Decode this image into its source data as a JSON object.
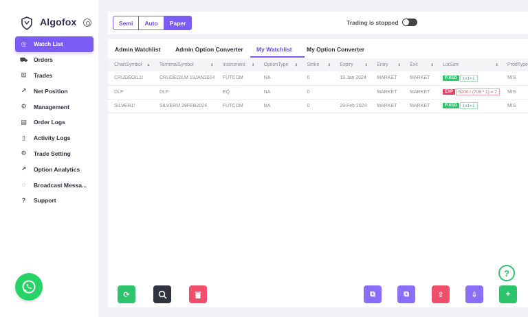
{
  "brand": {
    "name": "Algofox",
    "logo_icon": "shield-fox-logo",
    "settings_icon": "gear-icon"
  },
  "sidebar": {
    "items": [
      {
        "label": "Watch List",
        "icon": "eye-icon",
        "glyph": "◎",
        "active": true
      },
      {
        "label": "Orders",
        "icon": "cart-icon",
        "glyph": "⛟",
        "active": false
      },
      {
        "label": "Trades",
        "icon": "bag-icon",
        "glyph": "⊡",
        "active": false
      },
      {
        "label": "Net Position",
        "icon": "trend-icon",
        "glyph": "↗",
        "active": false
      },
      {
        "label": "Management",
        "icon": "cog-icon",
        "glyph": "⚙",
        "active": false
      },
      {
        "label": "Order Logs",
        "icon": "file-icon",
        "glyph": "▤",
        "active": false
      },
      {
        "label": "Activity Logs",
        "icon": "book-icon",
        "glyph": "▯",
        "active": false
      },
      {
        "label": "Trade Setting",
        "icon": "cog-icon",
        "glyph": "⚙",
        "active": false
      },
      {
        "label": "Option Analytics",
        "icon": "trend-icon",
        "glyph": "↗",
        "active": false
      },
      {
        "label": "Broadcast Messa...",
        "icon": "chat-icon",
        "glyph": "◌",
        "active": false
      },
      {
        "label": "Support",
        "icon": "help-icon",
        "glyph": "?",
        "active": false
      }
    ]
  },
  "topbar": {
    "modes": [
      {
        "label": "Semi",
        "active": false
      },
      {
        "label": "Auto",
        "active": false
      },
      {
        "label": "Paper",
        "active": true
      }
    ],
    "trading_status": "Trading is stopped"
  },
  "tabs": [
    "Admin Watchlist",
    "Admin Option Converter",
    "My Watchlist",
    "My Option Converter"
  ],
  "active_tab": "My Watchlist",
  "table": {
    "columns": [
      "ChartSymbol",
      "TerminalSymbol",
      "Instrument",
      "OptionType",
      "Strike",
      "Expiry",
      "Entry",
      "Exit",
      "LotSize",
      "ProdType"
    ],
    "rows": [
      {
        "chart_symbol": "CRUDEOIL1!",
        "terminal_symbol": "CRUDEOILM 19JAN2024",
        "instrument": "FUTCOM",
        "option_type": "NA",
        "strike": "0",
        "expiry": "19 Jan 2024",
        "entry": "MARKET",
        "exit": "MARKET",
        "lot_badge": "FIXED",
        "lot_value": "1x1=1",
        "prod_type": "MIS"
      },
      {
        "chart_symbol": "DLF",
        "terminal_symbol": "DLF",
        "instrument": "EQ",
        "option_type": "NA",
        "strike": "0",
        "expiry": "",
        "entry": "MARKET",
        "exit": "MARKET",
        "lot_badge": "EXP",
        "lot_value": "5200 / (708 * 1) = 7",
        "prod_type": "MIS"
      },
      {
        "chart_symbol": "SILVER1!",
        "terminal_symbol": "SILVERM 29FEB2024",
        "instrument": "FUTCOM",
        "option_type": "NA",
        "strike": "0",
        "expiry": "29 Feb 2024",
        "entry": "MARKET",
        "exit": "MARKET",
        "lot_badge": "FIXED",
        "lot_value": "1x1=1",
        "prod_type": "MIS"
      }
    ]
  },
  "actions": {
    "refresh": {
      "icon": "refresh-icon",
      "glyph": "⟳",
      "color": "#2ec46b"
    },
    "search": {
      "icon": "search-icon",
      "glyph": "○",
      "color": "#2f3440"
    },
    "delete": {
      "icon": "trash-icon",
      "glyph": "🗑",
      "color": "#ef4f6b"
    },
    "copy1": {
      "icon": "copy-icon",
      "glyph": "⧉",
      "color": "#8b6ef7"
    },
    "copy2": {
      "icon": "copy-icon",
      "glyph": "⧉",
      "color": "#8b6ef7"
    },
    "upload": {
      "icon": "upload-icon",
      "glyph": "⇧",
      "color": "#ef4f6b"
    },
    "download": {
      "icon": "download-icon",
      "glyph": "⇩",
      "color": "#8b6ef7"
    },
    "add": {
      "icon": "plus-icon",
      "glyph": "+",
      "color": "#2ec46b"
    },
    "help": {
      "icon": "help-circle-icon",
      "glyph": "?"
    }
  },
  "colors": {
    "accent": "#7b5cf5",
    "success": "#2ec46b",
    "danger": "#ef4f6b",
    "whatsapp": "#25d366"
  }
}
